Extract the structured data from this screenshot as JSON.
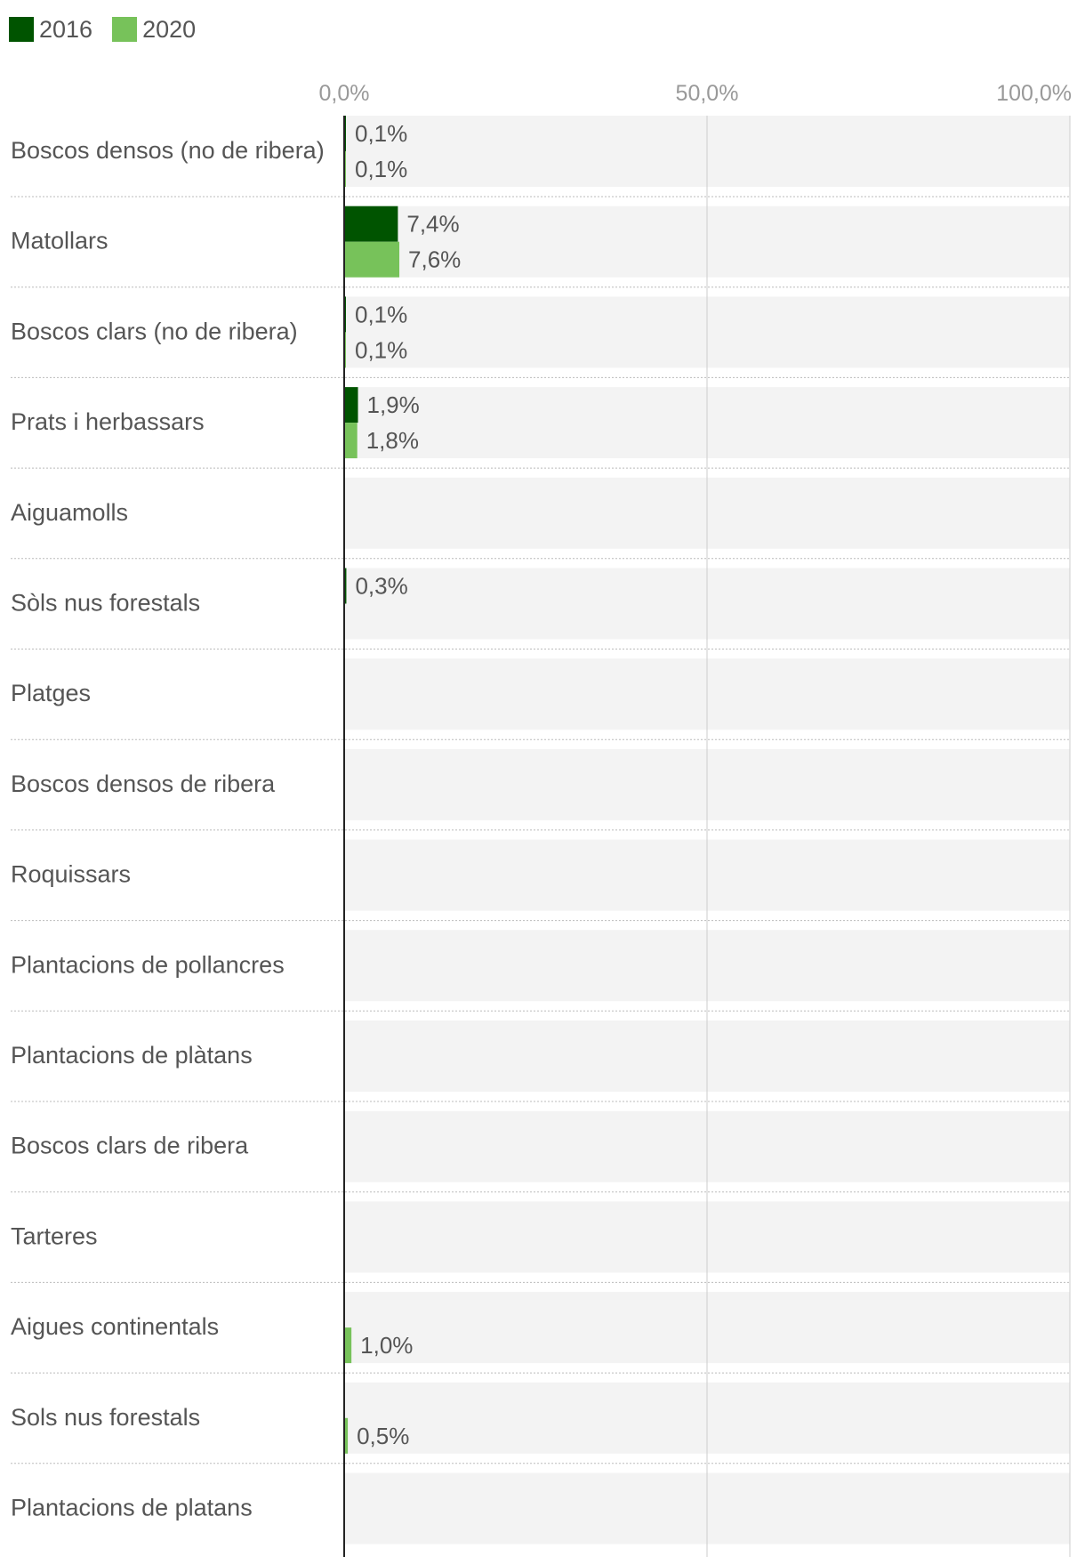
{
  "chart_data": {
    "type": "bar",
    "orientation": "horizontal",
    "title": "",
    "xlim": [
      0,
      100
    ],
    "ticks": [
      {
        "value": 0,
        "label": "0,0%"
      },
      {
        "value": 50,
        "label": "50,0%"
      },
      {
        "value": 100,
        "label": "100,0%"
      }
    ],
    "legend_position": "top-left",
    "categories": [
      "Boscos densos (no de ribera)",
      "Matollars",
      "Boscos clars (no de ribera)",
      "Prats i herbassars",
      "Aiguamolls",
      "Sòls nus forestals",
      "Platges",
      "Boscos densos de ribera",
      "Roquissars",
      "Plantacions de pollancres",
      "Plantacions de plàtans",
      "Boscos clars de ribera",
      "Tarteres",
      "Aigues continentals",
      "Sols nus forestals",
      "Plantacions de platans"
    ],
    "series": [
      {
        "name": "2016",
        "color": "#005400",
        "values": [
          0.1,
          7.4,
          0.1,
          1.9,
          null,
          0.3,
          null,
          null,
          null,
          null,
          null,
          null,
          null,
          null,
          null,
          null
        ],
        "labels": [
          "0,1%",
          "7,4%",
          "0,1%",
          "1,9%",
          "",
          "0,3%",
          "",
          "",
          "",
          "",
          "",
          "",
          "",
          "",
          "",
          ""
        ]
      },
      {
        "name": "2020",
        "color": "#77c25a",
        "values": [
          0.1,
          7.6,
          0.1,
          1.8,
          null,
          null,
          null,
          null,
          null,
          null,
          null,
          null,
          null,
          1.0,
          0.5,
          null
        ],
        "labels": [
          "0,1%",
          "7,6%",
          "0,1%",
          "1,8%",
          "",
          "",
          "",
          "",
          "",
          "",
          "",
          "",
          "",
          "1,0%",
          "0,5%",
          ""
        ]
      }
    ]
  }
}
